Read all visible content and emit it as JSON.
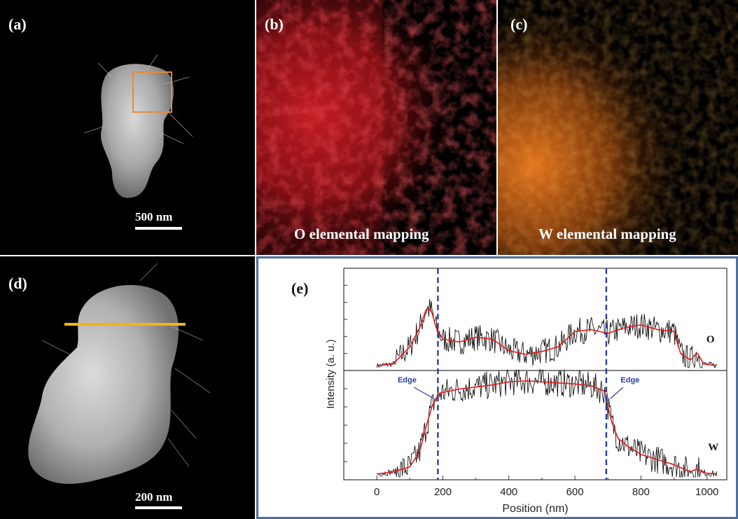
{
  "panels": {
    "a": {
      "label": "(a)",
      "scale_bar": "500 nm"
    },
    "b": {
      "label": "(b)",
      "caption": "O elemental mapping"
    },
    "c": {
      "label": "(c)",
      "caption": "W elemental mapping"
    },
    "d": {
      "label": "(d)",
      "scale_bar": "200 nm"
    },
    "e": {
      "label": "(e)"
    }
  },
  "colors": {
    "o_map": "#e0202a",
    "w_map": "#f07a1e",
    "selection_box": "#e8893a",
    "line_scan": "#f2b417",
    "raw_signal": "#000000",
    "smoothed_signal": "#e31a1c",
    "edge_marker": "#2b3f9c",
    "panel_border": "#4d6f9f"
  },
  "chart_data": {
    "type": "line",
    "xlabel": "Position (nm)",
    "ylabel": "Intensity (a. u.)",
    "xlim": [
      -100,
      1060
    ],
    "x_ticks": [
      0,
      200,
      400,
      600,
      800,
      1000
    ],
    "grid": false,
    "series": [
      {
        "name": "O",
        "x": [
          0,
          50,
          100,
          130,
          150,
          165,
          180,
          200,
          250,
          300,
          350,
          400,
          450,
          500,
          550,
          600,
          650,
          700,
          750,
          800,
          850,
          900,
          920,
          950,
          970,
          990,
          1030
        ],
        "y": [
          0.02,
          0.04,
          0.22,
          0.42,
          0.62,
          0.6,
          0.42,
          0.3,
          0.27,
          0.32,
          0.3,
          0.18,
          0.14,
          0.17,
          0.22,
          0.38,
          0.4,
          0.36,
          0.42,
          0.45,
          0.4,
          0.38,
          0.15,
          0.08,
          0.16,
          0.04,
          0.02
        ]
      },
      {
        "name": "W",
        "x": [
          0,
          50,
          100,
          130,
          150,
          170,
          190,
          250,
          300,
          350,
          400,
          450,
          500,
          550,
          600,
          650,
          690,
          710,
          730,
          760,
          800,
          850,
          900,
          950,
          970,
          990,
          1030
        ],
        "y": [
          0.03,
          0.05,
          0.1,
          0.25,
          0.5,
          0.72,
          0.82,
          0.86,
          0.88,
          0.9,
          0.93,
          0.94,
          0.93,
          0.92,
          0.91,
          0.89,
          0.84,
          0.55,
          0.38,
          0.3,
          0.22,
          0.17,
          0.12,
          0.05,
          0.08,
          0.04,
          0.03
        ]
      }
    ],
    "annotations": [
      {
        "text": "Edge",
        "x": 185
      },
      {
        "text": "Edge",
        "x": 695
      }
    ],
    "series_labels": [
      "O",
      "W"
    ]
  }
}
